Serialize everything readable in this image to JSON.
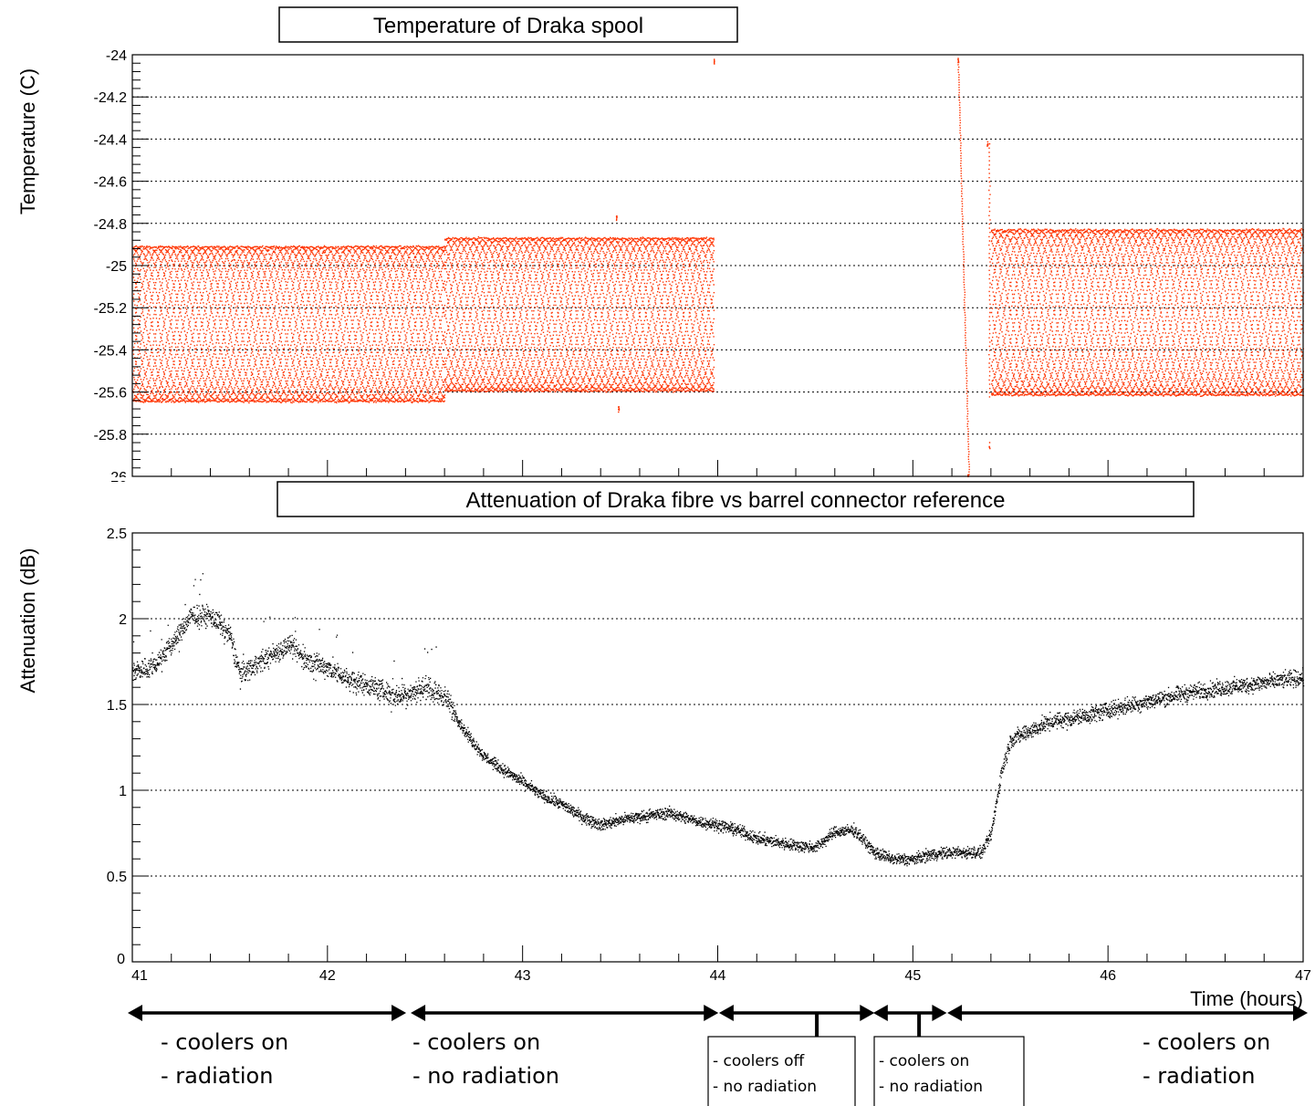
{
  "chart_data": [
    {
      "type": "scatter",
      "title": "Temperature of Draka spool",
      "ylabel": "Temperature (C)",
      "xlim": [
        41,
        47
      ],
      "ylim": [
        -26,
        -24
      ],
      "y_ticks": [
        "-24",
        "-24.2",
        "-24.4",
        "-24.6",
        "-24.8",
        "-25",
        "-25.2",
        "-25.4",
        "-25.6",
        "-25.8",
        "-26"
      ],
      "y_tick_values": [
        -24,
        -24.2,
        -24.4,
        -24.6,
        -24.8,
        -25,
        -25.2,
        -25.4,
        -25.6,
        -25.8,
        -26
      ],
      "grid": true,
      "marker_color": "#ff3300",
      "series": [
        {
          "segments": [
            {
              "x": [
                41.0,
                42.6
              ],
              "band": [
                -25.65,
                -24.9
              ]
            },
            {
              "x": [
                42.6,
                43.98
              ],
              "band": [
                -25.6,
                -24.86
              ]
            },
            {
              "x": [
                45.4,
                47.0
              ],
              "band": [
                -25.62,
                -24.82
              ]
            }
          ],
          "spikes": [
            [
              43.48,
              -24.77
            ],
            [
              43.49,
              -25.68
            ],
            [
              43.98,
              -24.03
            ],
            [
              45.23,
              -24.02
            ],
            [
              45.28,
              -26.0
            ],
            [
              45.38,
              -24.42
            ],
            [
              45.39,
              -25.85
            ]
          ]
        }
      ]
    },
    {
      "type": "scatter",
      "title": "Attenuation of Draka fibre vs barrel connector reference",
      "xlabel": "Time (hours)",
      "ylabel": "Attenuation (dB)",
      "xlim": [
        41,
        47
      ],
      "ylim": [
        0,
        2.5
      ],
      "x_ticks": [
        "41",
        "42",
        "43",
        "44",
        "45",
        "46",
        "47"
      ],
      "x_tick_values": [
        41,
        42,
        43,
        44,
        45,
        46,
        47
      ],
      "y_ticks": [
        "0",
        "0.5",
        "1",
        "1.5",
        "2",
        "2.5"
      ],
      "y_tick_values": [
        0,
        0.5,
        1,
        1.5,
        2,
        2.5
      ],
      "grid": true,
      "marker_color": "#000000",
      "series": [
        {
          "trend": [
            [
              41.0,
              1.7
            ],
            [
              41.1,
              1.72
            ],
            [
              41.2,
              1.85
            ],
            [
              41.3,
              2.02
            ],
            [
              41.4,
              2.02
            ],
            [
              41.5,
              1.9
            ],
            [
              41.55,
              1.68
            ],
            [
              41.65,
              1.75
            ],
            [
              41.8,
              1.85
            ],
            [
              41.9,
              1.75
            ],
            [
              42.0,
              1.72
            ],
            [
              42.1,
              1.65
            ],
            [
              42.2,
              1.62
            ],
            [
              42.35,
              1.55
            ],
            [
              42.5,
              1.6
            ],
            [
              42.6,
              1.55
            ],
            [
              42.7,
              1.35
            ],
            [
              42.8,
              1.2
            ],
            [
              42.9,
              1.12
            ],
            [
              43.0,
              1.05
            ],
            [
              43.1,
              0.97
            ],
            [
              43.2,
              0.92
            ],
            [
              43.3,
              0.85
            ],
            [
              43.4,
              0.8
            ],
            [
              43.5,
              0.83
            ],
            [
              43.6,
              0.85
            ],
            [
              43.75,
              0.87
            ],
            [
              43.9,
              0.82
            ],
            [
              44.0,
              0.8
            ],
            [
              44.1,
              0.77
            ],
            [
              44.2,
              0.72
            ],
            [
              44.3,
              0.7
            ],
            [
              44.4,
              0.68
            ],
            [
              44.5,
              0.67
            ],
            [
              44.6,
              0.76
            ],
            [
              44.7,
              0.77
            ],
            [
              44.8,
              0.64
            ],
            [
              44.9,
              0.6
            ],
            [
              45.0,
              0.6
            ],
            [
              45.1,
              0.63
            ],
            [
              45.2,
              0.64
            ],
            [
              45.35,
              0.64
            ],
            [
              45.4,
              0.75
            ],
            [
              45.45,
              1.1
            ],
            [
              45.5,
              1.3
            ],
            [
              45.6,
              1.35
            ],
            [
              45.7,
              1.4
            ],
            [
              45.8,
              1.42
            ],
            [
              45.9,
              1.44
            ],
            [
              46.0,
              1.47
            ],
            [
              46.2,
              1.52
            ],
            [
              46.4,
              1.57
            ],
            [
              46.6,
              1.6
            ],
            [
              46.8,
              1.63
            ],
            [
              47.0,
              1.66
            ]
          ]
        }
      ]
    }
  ],
  "annotations": {
    "segments": [
      {
        "x_start": 41.0,
        "x_end": 42.38,
        "lines": [
          "- coolers on",
          "- radiation"
        ],
        "boxed": false
      },
      {
        "x_start": 42.45,
        "x_end": 43.98,
        "lines": [
          "- coolers on",
          "-  no radiation"
        ],
        "boxed": false
      },
      {
        "x_start": 44.03,
        "x_end": 44.78,
        "lines": [
          "- coolers off",
          "-  no radiation"
        ],
        "boxed": true
      },
      {
        "x_start": 44.82,
        "x_end": 45.15,
        "lines": [
          "- coolers on",
          "-  no radiation"
        ],
        "boxed": true
      },
      {
        "x_start": 45.2,
        "x_end": 47.0,
        "lines": [
          "- coolers on",
          "- radiation"
        ],
        "boxed": false
      }
    ]
  }
}
